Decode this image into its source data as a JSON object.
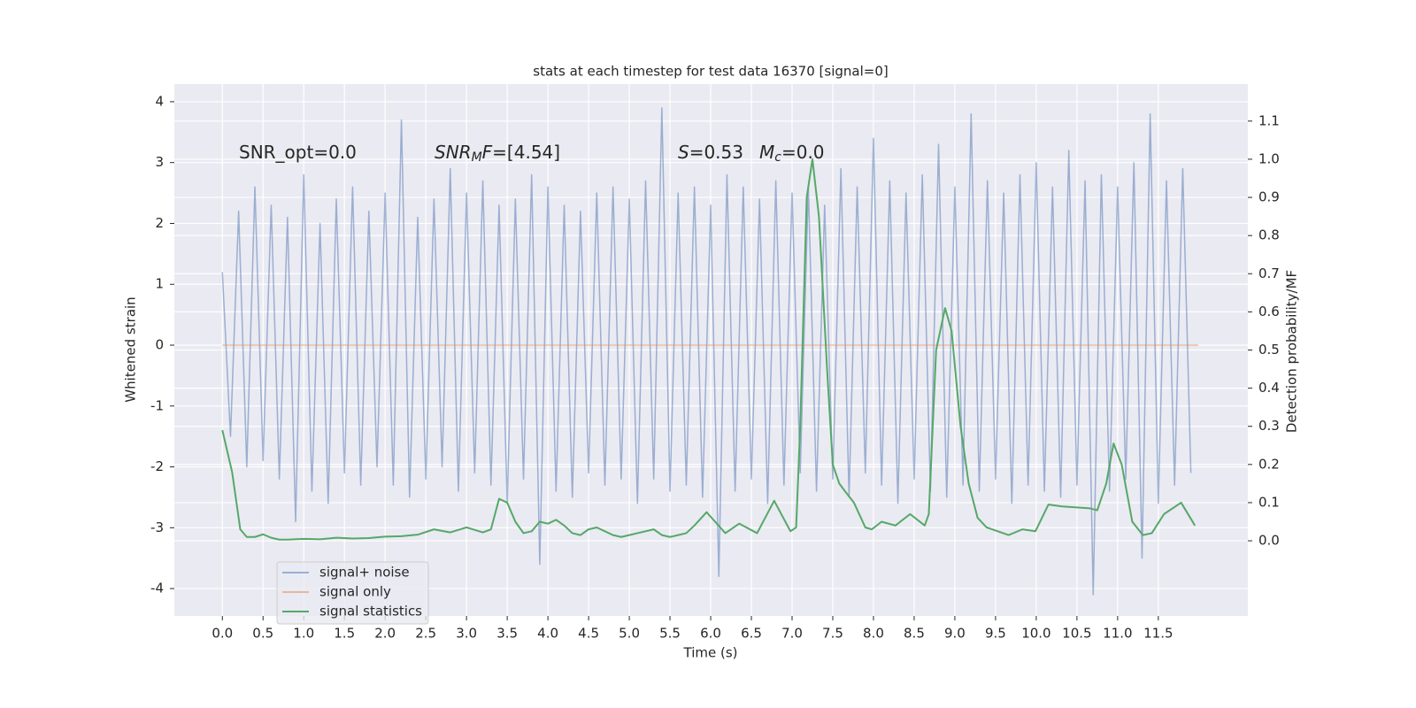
{
  "chart_data": {
    "type": "line",
    "title": "stats at each timestep for test data 16370 [signal=0]",
    "xlabel": "Time (s)",
    "ylabel": "Whitened strain",
    "y2label": "Detection probability/MF",
    "xlim": [
      -0.59,
      12.6
    ],
    "ylim": [
      -4.45,
      4.29
    ],
    "y2lim": [
      -0.197,
      1.197
    ],
    "xticks": [
      {
        "value": 0,
        "label": "0.0"
      },
      0.5,
      {
        "value": 1,
        "label": "1.0"
      },
      1.5,
      {
        "value": 2,
        "label": "2.0"
      },
      2.5,
      {
        "value": 3,
        "label": "3.0"
      },
      3.5,
      {
        "value": 4,
        "label": "4.0"
      },
      4.5,
      {
        "value": 5,
        "label": "5.0"
      },
      5.5,
      {
        "value": 6,
        "label": "6.0"
      },
      6.5,
      {
        "value": 7,
        "label": "7.0"
      },
      7.5,
      {
        "value": 8,
        "label": "8.0"
      },
      8.5,
      {
        "value": 9,
        "label": "9.0"
      },
      9.5,
      {
        "value": 10,
        "label": "10.0"
      },
      10.5,
      {
        "value": 11,
        "label": "11.0"
      },
      11.5
    ],
    "yticks": [
      -4,
      -3,
      -2,
      -1,
      0,
      1,
      2,
      3,
      4
    ],
    "y2ticks": [
      {
        "value": 0,
        "label": "0.0"
      },
      0.1,
      0.2,
      0.3,
      0.4,
      0.5,
      0.6,
      0.7,
      0.8,
      0.9,
      {
        "value": 1,
        "label": "1.0"
      },
      1.1
    ],
    "grid": true,
    "legend": "lower left",
    "annotations": [
      [
        {
          "text": "SNR_opt=0.0",
          "style": "normal"
        }
      ],
      [
        {
          "text": "SNR",
          "style": "italic"
        },
        {
          "text": "M",
          "style": "sub"
        },
        {
          "text": "F",
          "style": "italic"
        },
        {
          "text": "=[4.54]",
          "style": "normal"
        }
      ],
      [
        {
          "text": "S",
          "style": "italic"
        },
        {
          "text": "=0.53",
          "style": "normal"
        }
      ],
      [
        {
          "text": "M",
          "style": "italic"
        },
        {
          "text": "c",
          "style": "sub"
        },
        {
          "text": "=0.0",
          "style": "normal"
        }
      ]
    ],
    "series": [
      {
        "name": "signal+ noise",
        "color": "#4c72b0",
        "opacity": 0.5,
        "x": [
          0,
          0.1,
          0.2,
          0.3,
          0.4,
          0.5,
          0.6,
          0.7,
          0.8,
          0.9,
          1,
          1.1,
          1.2,
          1.3,
          1.4,
          1.5,
          1.6,
          1.7,
          1.8,
          1.9,
          2,
          2.1,
          2.2,
          2.3,
          2.4,
          2.5,
          2.6,
          2.7,
          2.8,
          2.9,
          3,
          3.1,
          3.2,
          3.3,
          3.4,
          3.5,
          3.6,
          3.7,
          3.8,
          3.9,
          4,
          4.1,
          4.2,
          4.3,
          4.4,
          4.5,
          4.6,
          4.7,
          4.8,
          4.9,
          5,
          5.1,
          5.2,
          5.3,
          5.4,
          5.5,
          5.6,
          5.7,
          5.8,
          5.9,
          6,
          6.1,
          6.2,
          6.3,
          6.4,
          6.5,
          6.6,
          6.7,
          6.8,
          6.9,
          7,
          7.1,
          7.2,
          7.3,
          7.4,
          7.5,
          7.6,
          7.7,
          7.8,
          7.9,
          8,
          8.1,
          8.2,
          8.3,
          8.4,
          8.5,
          8.6,
          8.7,
          8.8,
          8.9,
          9,
          9.1,
          9.2,
          9.3,
          9.4,
          9.5,
          9.6,
          9.7,
          9.8,
          9.9,
          10,
          10.1,
          10.2,
          10.3,
          10.4,
          10.5,
          10.6,
          10.7,
          10.8,
          10.9,
          11,
          11.1,
          11.2,
          11.3,
          11.4,
          11.5,
          11.6,
          11.7,
          11.8,
          11.9
        ],
        "values": [
          1.2,
          -1.5,
          2.2,
          -2.0,
          2.6,
          -1.9,
          2.3,
          -2.2,
          2.1,
          -2.9,
          2.8,
          -2.4,
          2.0,
          -2.6,
          2.4,
          -2.1,
          2.6,
          -2.3,
          2.2,
          -2.0,
          2.5,
          -2.3,
          3.7,
          -2.5,
          2.1,
          -2.2,
          2.4,
          -2.0,
          2.9,
          -2.4,
          2.5,
          -2.1,
          2.7,
          -2.3,
          2.3,
          -2.6,
          2.4,
          -2.2,
          2.8,
          -3.6,
          2.6,
          -2.4,
          2.3,
          -2.5,
          2.2,
          -2.1,
          2.5,
          -2.3,
          2.6,
          -2.2,
          2.4,
          -2.6,
          2.7,
          -2.2,
          3.9,
          -2.4,
          2.5,
          -2.3,
          2.6,
          -2.5,
          2.3,
          -3.8,
          2.8,
          -2.4,
          2.6,
          -2.2,
          2.4,
          -2.6,
          2.7,
          -2.3,
          2.5,
          -2.1,
          2.6,
          -2.4,
          2.3,
          -2.2,
          2.9,
          -2.5,
          2.6,
          -2.1,
          3.4,
          -2.3,
          2.7,
          -2.6,
          2.5,
          -2.2,
          2.8,
          -2.4,
          3.3,
          -2.5,
          2.6,
          -2.3,
          3.8,
          -2.4,
          2.7,
          -2.2,
          2.5,
          -2.6,
          2.8,
          -2.3,
          3.0,
          -2.4,
          2.6,
          -2.5,
          3.2,
          -2.3,
          2.7,
          -4.1,
          2.8,
          -2.4,
          2.6,
          -2.2,
          3.0,
          -3.5,
          3.8,
          -2.6,
          2.7,
          -2.3,
          2.9,
          -2.1
        ]
      },
      {
        "name": "signal only",
        "color": "#dd8452",
        "opacity": 0.5,
        "x": [
          0,
          11.99
        ],
        "values": [
          0,
          0
        ]
      },
      {
        "name": "signal statistics",
        "color": "#55a868",
        "opacity": 1,
        "axis": "y2",
        "x": [
          0,
          0.12,
          0.22,
          0.3,
          0.4,
          0.5,
          0.6,
          0.7,
          0.8,
          1,
          1.2,
          1.4,
          1.6,
          1.8,
          2,
          2.2,
          2.4,
          2.6,
          2.8,
          3,
          3.2,
          3.3,
          3.4,
          3.5,
          3.6,
          3.7,
          3.8,
          3.9,
          4,
          4.1,
          4.2,
          4.3,
          4.4,
          4.5,
          4.6,
          4.7,
          4.8,
          4.9,
          5,
          5.1,
          5.2,
          5.3,
          5.4,
          5.5,
          5.6,
          5.7,
          5.8,
          5.95,
          6.18,
          6.35,
          6.57,
          6.78,
          6.98,
          7.05,
          7.1,
          7.18,
          7.25,
          7.33,
          7.43,
          7.5,
          7.58,
          7.65,
          7.76,
          7.9,
          7.98,
          8.1,
          8.27,
          8.45,
          8.63,
          8.68,
          8.77,
          8.88,
          8.96,
          9.07,
          9.17,
          9.28,
          9.39,
          9.66,
          9.83,
          9.99,
          10.15,
          10.32,
          10.66,
          10.75,
          10.86,
          10.95,
          11.05,
          11.18,
          11.31,
          11.42,
          11.57,
          11.78,
          11.95
        ],
        "values": [
          0.29,
          0.18,
          0.03,
          0.01,
          0.01,
          0.017,
          0.008,
          0.003,
          0.003,
          0.005,
          0.004,
          0.008,
          0.006,
          0.007,
          0.011,
          0.012,
          0.016,
          0.03,
          0.022,
          0.035,
          0.022,
          0.03,
          0.11,
          0.1,
          0.05,
          0.02,
          0.025,
          0.05,
          0.045,
          0.055,
          0.04,
          0.02,
          0.015,
          0.03,
          0.035,
          0.025,
          0.015,
          0.01,
          0.015,
          0.02,
          0.025,
          0.03,
          0.015,
          0.01,
          0.015,
          0.02,
          0.04,
          0.075,
          0.02,
          0.045,
          0.02,
          0.105,
          0.025,
          0.035,
          0.3,
          0.9,
          1.0,
          0.85,
          0.45,
          0.2,
          0.15,
          0.13,
          0.1,
          0.035,
          0.03,
          0.05,
          0.04,
          0.07,
          0.04,
          0.07,
          0.5,
          0.61,
          0.55,
          0.3,
          0.15,
          0.06,
          0.035,
          0.015,
          0.03,
          0.025,
          0.095,
          0.09,
          0.085,
          0.08,
          0.15,
          0.255,
          0.2,
          0.05,
          0.015,
          0.02,
          0.07,
          0.1,
          0.04
        ]
      }
    ]
  }
}
